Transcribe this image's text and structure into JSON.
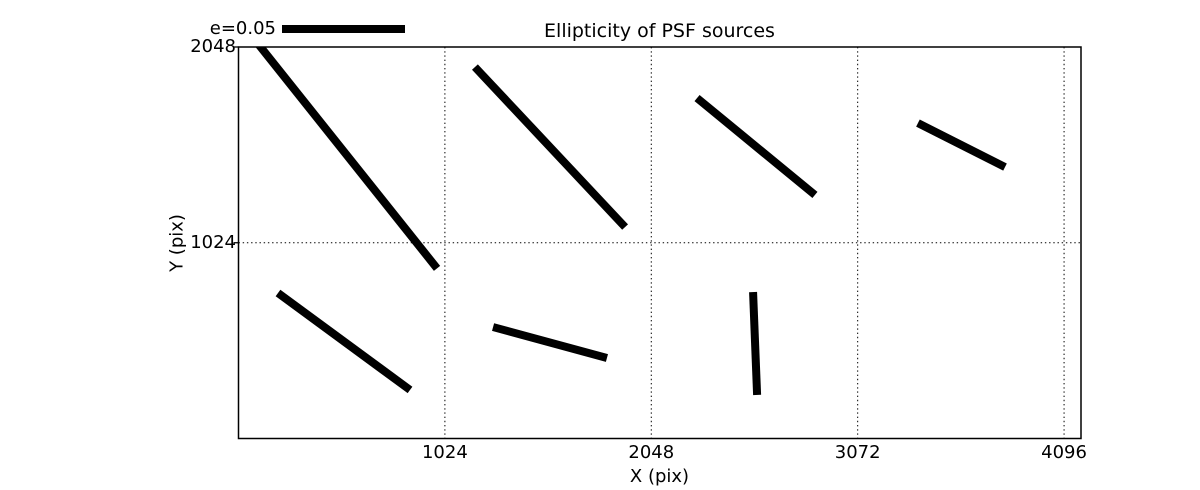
{
  "figure": {
    "title": "Ellipticity of PSF sources"
  },
  "chart_data": {
    "type": "line",
    "variant": "ellipticity whisker/quiver map (each segment = PSF source ellipticity stick)",
    "title": "Ellipticity of PSF sources",
    "xlabel": "X (pix)",
    "ylabel": "Y (pix)",
    "xlim": [
      0,
      4180
    ],
    "ylim": [
      0,
      2048
    ],
    "xticks": [
      1024,
      2048,
      3072,
      4096
    ],
    "xtick_labels": [
      "1024",
      "2048",
      "3072",
      "4096"
    ],
    "yticks": [
      1024,
      2048
    ],
    "ytick_labels": [
      "1024",
      "2048"
    ],
    "grid": "dotted",
    "legend": {
      "label": "e=0.05",
      "e": 0.05,
      "bar_length_data_units": 610
    },
    "segments": [
      {
        "x1": 40,
        "y1": 2140,
        "x2": 985,
        "y2": 890,
        "cx": 512,
        "cy": 1515,
        "e": 0.124
      },
      {
        "x1": 1173,
        "y1": 1943,
        "x2": 1918,
        "y2": 1106,
        "cx": 1546,
        "cy": 1524,
        "e": 0.089
      },
      {
        "x1": 2275,
        "y1": 1781,
        "x2": 2860,
        "y2": 1274,
        "cx": 2568,
        "cy": 1528,
        "e": 0.062
      },
      {
        "x1": 3371,
        "y1": 1650,
        "x2": 3803,
        "y2": 1420,
        "cx": 3587,
        "cy": 1535,
        "e": 0.04
      },
      {
        "x1": 196,
        "y1": 761,
        "x2": 851,
        "y2": 254,
        "cx": 524,
        "cy": 508,
        "e": 0.067
      },
      {
        "x1": 1263,
        "y1": 583,
        "x2": 1828,
        "y2": 421,
        "cx": 1546,
        "cy": 502,
        "e": 0.048
      },
      {
        "x1": 2553,
        "y1": 766,
        "x2": 2573,
        "y2": 228,
        "cx": 2563,
        "cy": 497,
        "e": 0.042
      }
    ]
  }
}
